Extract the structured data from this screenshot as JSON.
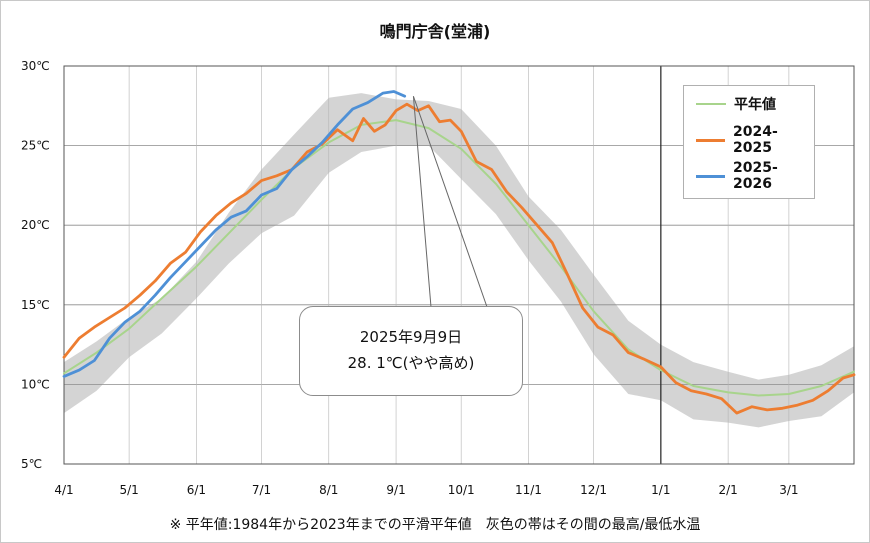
{
  "chart_data": {
    "type": "line",
    "title": "鳴門庁舎(堂浦)",
    "ylabel": "",
    "xlabel": "",
    "ylim": [
      5,
      30
    ],
    "y_ticks": [
      "5℃",
      "10℃",
      "15℃",
      "20℃",
      "25℃",
      "30℃"
    ],
    "x_ticks": [
      "4/1",
      "5/1",
      "6/1",
      "7/1",
      "8/1",
      "9/1",
      "10/1",
      "11/1",
      "12/1",
      "1/1",
      "2/1",
      "3/1"
    ],
    "x_tick_days": [
      0,
      30,
      61,
      91,
      122,
      153,
      183,
      214,
      244,
      275,
      306,
      334
    ],
    "x_max_days": 364,
    "year_boundary_day": 275,
    "grid": true,
    "legend_position": "top-right",
    "band_color": "#d4d4d4",
    "band": {
      "name": "灰色の帯",
      "x": [
        0,
        15,
        30,
        45,
        61,
        76,
        91,
        106,
        122,
        137,
        153,
        168,
        183,
        199,
        214,
        229,
        244,
        260,
        275,
        290,
        306,
        320,
        334,
        349,
        364
      ],
      "low": [
        8.2,
        9.6,
        11.7,
        13.2,
        15.4,
        17.6,
        19.5,
        20.6,
        23.3,
        24.6,
        25.0,
        25.0,
        22.9,
        20.7,
        17.8,
        15.2,
        11.9,
        9.4,
        9.0,
        7.8,
        7.6,
        7.3,
        7.7,
        8.0,
        9.5
      ],
      "high": [
        11.4,
        12.7,
        14.2,
        15.4,
        17.7,
        20.8,
        23.5,
        25.7,
        28.0,
        28.3,
        27.9,
        27.8,
        27.3,
        25.0,
        21.8,
        19.7,
        16.9,
        14.0,
        12.5,
        11.4,
        10.8,
        10.3,
        10.6,
        11.2,
        12.4
      ]
    },
    "series": [
      {
        "name": "平年値",
        "color": "#a8d48c",
        "x": [
          0,
          15,
          30,
          45,
          61,
          76,
          91,
          106,
          122,
          137,
          153,
          168,
          183,
          199,
          214,
          229,
          244,
          260,
          275,
          290,
          306,
          320,
          334,
          349,
          364
        ],
        "values": [
          10.7,
          12.0,
          13.5,
          15.4,
          17.4,
          19.5,
          21.6,
          23.6,
          25.2,
          26.3,
          26.6,
          26.1,
          24.8,
          22.6,
          20.0,
          17.4,
          14.6,
          12.2,
          10.9,
          9.9,
          9.5,
          9.3,
          9.4,
          9.9,
          10.8
        ]
      },
      {
        "name": "2024-2025",
        "color": "#ed7d31",
        "x": [
          0,
          7,
          14,
          21,
          28,
          35,
          42,
          49,
          56,
          63,
          70,
          77,
          84,
          91,
          98,
          105,
          112,
          119,
          126,
          133,
          138,
          143,
          148,
          153,
          158,
          163,
          168,
          173,
          178,
          183,
          190,
          197,
          204,
          211,
          218,
          225,
          232,
          239,
          246,
          253,
          260,
          267,
          275,
          282,
          289,
          296,
          303,
          310,
          317,
          324,
          331,
          338,
          345,
          352,
          359,
          364
        ],
        "values": [
          11.7,
          12.9,
          13.6,
          14.2,
          14.8,
          15.6,
          16.5,
          17.6,
          18.3,
          19.6,
          20.6,
          21.4,
          22.0,
          22.8,
          23.1,
          23.5,
          24.6,
          25.1,
          26.0,
          25.3,
          26.7,
          25.9,
          26.3,
          27.2,
          27.6,
          27.2,
          27.5,
          26.5,
          26.6,
          25.9,
          24.0,
          23.5,
          22.1,
          21.1,
          20.0,
          18.9,
          16.9,
          14.8,
          13.6,
          13.1,
          12.0,
          11.6,
          11.1,
          10.1,
          9.6,
          9.4,
          9.1,
          8.2,
          8.6,
          8.4,
          8.5,
          8.7,
          9.0,
          9.6,
          10.4,
          10.6
        ]
      },
      {
        "name": "2025-2026",
        "color": "#4e90d6",
        "x": [
          0,
          7,
          14,
          21,
          28,
          35,
          42,
          49,
          56,
          63,
          70,
          77,
          84,
          91,
          98,
          105,
          112,
          119,
          126,
          133,
          140,
          147,
          152,
          157
        ],
        "values": [
          10.5,
          10.9,
          11.5,
          12.9,
          13.9,
          14.6,
          15.6,
          16.7,
          17.7,
          18.7,
          19.7,
          20.5,
          20.9,
          21.9,
          22.3,
          23.5,
          24.3,
          25.2,
          26.3,
          27.3,
          27.7,
          28.3,
          28.4,
          28.1
        ]
      }
    ]
  },
  "legend": {
    "items": [
      {
        "label": "平年値"
      },
      {
        "label": "2024-2025"
      },
      {
        "label": "2025-2026"
      }
    ]
  },
  "callout": {
    "date": "2025年9月9日",
    "value": "28. 1℃(やや高め)",
    "point_day": 161,
    "point_value": 28.1
  },
  "footnote": "※ 平年値:1984年から2023年までの平滑平年値　灰色の帯はその間の最高/最低水温"
}
